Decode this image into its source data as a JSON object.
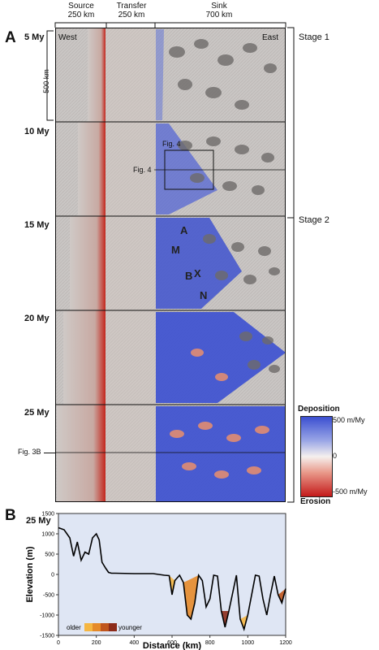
{
  "panel_a": {
    "letter": "A",
    "columns": [
      {
        "title": "Source",
        "width": "250 km"
      },
      {
        "title": "Transfer",
        "width": "250 km"
      },
      {
        "title": "Sink",
        "width": "700 km"
      }
    ],
    "times": [
      "5 My",
      "10 My",
      "15 My",
      "20 My",
      "25 My"
    ],
    "west": "West",
    "east": "East",
    "scale_label": "500 km",
    "stages": [
      "Stage 1",
      "Stage 2"
    ],
    "fig4": "Fig. 4",
    "fig3b": "Fig. 3B",
    "markers": [
      "A",
      "M",
      "B",
      "X",
      "N"
    ],
    "colorbar": {
      "title_top": "Deposition",
      "title_bottom": "Erosion",
      "ticks": [
        "500 m/My",
        "0",
        "-500 m/My"
      ],
      "colors": {
        "deposition": "#3b4fd1",
        "zero": "#f5f0ee",
        "erosion": "#c41a1a"
      }
    }
  },
  "panel_b": {
    "letter": "B",
    "time": "25 My",
    "legend": {
      "older": "older",
      "younger": "younger",
      "colors": [
        "#f5b642",
        "#e58a2a",
        "#c0561e",
        "#8c2b1a"
      ]
    }
  },
  "chart_data": {
    "type": "line",
    "title": "",
    "xlabel": "Distance (km)",
    "ylabel": "Elevation (m)",
    "xlim": [
      0,
      1200
    ],
    "ylim": [
      -1500,
      1500
    ],
    "xticks": [
      0,
      200,
      400,
      600,
      800,
      1000,
      1200
    ],
    "yticks": [
      1500,
      1000,
      500,
      0,
      -500,
      -1000,
      -1500
    ],
    "series": [
      {
        "x": [
          0,
          30,
          60,
          80,
          100,
          120,
          140,
          160,
          180,
          200,
          215,
          230,
          250,
          265,
          280,
          300,
          400,
          500,
          560,
          585,
          600,
          615,
          640,
          660,
          680,
          700,
          720,
          740,
          760,
          780,
          800,
          820,
          840,
          860,
          880,
          900,
          940,
          960,
          980,
          1000,
          1040,
          1060,
          1080,
          1100,
          1120,
          1140,
          1160,
          1180,
          1200
        ],
        "y": [
          1150,
          1100,
          900,
          450,
          800,
          350,
          550,
          500,
          900,
          1000,
          850,
          300,
          150,
          50,
          30,
          30,
          20,
          20,
          -20,
          -30,
          -500,
          -150,
          -20,
          -200,
          -1000,
          -1100,
          -700,
          -20,
          -150,
          -800,
          -600,
          -20,
          -40,
          -900,
          -1300,
          -900,
          -20,
          -1100,
          -1350,
          -1000,
          -20,
          -40,
          -600,
          -1000,
          -500,
          -40,
          -500,
          -700,
          -350
        ]
      }
    ]
  }
}
